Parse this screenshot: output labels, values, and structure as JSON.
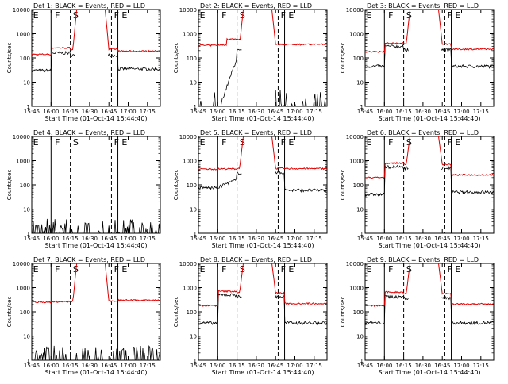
{
  "figure": {
    "xlabel": "Start Time (01-Oct-14 15:44:40)",
    "ylabel": "Counts/sec",
    "x_tick_labels": [
      "15:45",
      "16:00",
      "16:15",
      "16:30",
      "16:45",
      "17:00",
      "17:15"
    ],
    "y_tick_labels": [
      "1",
      "10",
      "100",
      "1000",
      "10000"
    ],
    "colors": {
      "events": "#000000",
      "lld": "#e00000"
    }
  },
  "chart_data": [
    {
      "type": "line",
      "title": "Det 1: BLACK = Events, RED = LLD",
      "ylim": [
        1,
        10000
      ],
      "yscale": "log",
      "markers": [
        "E",
        "F",
        "S",
        "F",
        "E"
      ],
      "events_level": [
        30,
        160,
        130,
        35
      ],
      "lld_level": [
        140,
        260,
        230,
        190
      ]
    },
    {
      "type": "line",
      "title": "Det 2: BLACK = Events, RED = LLD",
      "ylim": [
        1,
        10000
      ],
      "yscale": "log",
      "markers": [
        "E",
        "F",
        "S",
        "F",
        "E"
      ],
      "events_level": [
        1.5,
        20,
        120,
        1.5
      ],
      "lld_level": [
        330,
        350,
        360,
        360
      ]
    },
    {
      "type": "line",
      "title": "Det 3: BLACK = Events, RED = LLD",
      "ylim": [
        1,
        10000
      ],
      "yscale": "log",
      "markers": [
        "E",
        "F",
        "S",
        "F",
        "E"
      ],
      "events_level": [
        45,
        300,
        220,
        45
      ],
      "lld_level": [
        180,
        400,
        380,
        230
      ]
    },
    {
      "type": "line",
      "title": "Det 4: BLACK = Events, RED = LLD",
      "ylim": [
        1,
        10000
      ],
      "yscale": "log",
      "markers": [
        "E",
        "F",
        "S",
        "F",
        "E"
      ],
      "events_level": [
        1.5,
        1.5,
        1.5,
        1.5
      ],
      "lld_level": [
        null,
        null,
        null,
        null
      ]
    },
    {
      "type": "line",
      "title": "Det 5: BLACK = Events, RED = LLD",
      "ylim": [
        1,
        10000
      ],
      "yscale": "log",
      "markers": [
        "E",
        "F",
        "S",
        "F",
        "E"
      ],
      "events_level": [
        75,
        160,
        320,
        60
      ],
      "lld_level": [
        450,
        460,
        480,
        470
      ]
    },
    {
      "type": "line",
      "title": "Det 6: BLACK = Events, RED = LLD",
      "ylim": [
        1,
        10000
      ],
      "yscale": "log",
      "markers": [
        "E",
        "F",
        "S",
        "F",
        "E"
      ],
      "events_level": [
        40,
        550,
        500,
        50
      ],
      "lld_level": [
        200,
        800,
        700,
        260
      ]
    },
    {
      "type": "line",
      "title": "Det 7: BLACK = Events, RED = LLD",
      "ylim": [
        1,
        10000
      ],
      "yscale": "log",
      "markers": [
        "E",
        "F",
        "S",
        "F",
        "E"
      ],
      "events_level": [
        1.5,
        1.5,
        1.5,
        1.5
      ],
      "lld_level": [
        250,
        260,
        270,
        300
      ]
    },
    {
      "type": "line",
      "title": "Det 8: BLACK = Events, RED = LLD",
      "ylim": [
        1,
        10000
      ],
      "yscale": "log",
      "markers": [
        "E",
        "F",
        "S",
        "F",
        "E"
      ],
      "events_level": [
        35,
        500,
        420,
        35
      ],
      "lld_level": [
        180,
        700,
        600,
        220
      ]
    },
    {
      "type": "line",
      "title": "Det 9: BLACK = Events, RED = LLD",
      "ylim": [
        1,
        10000
      ],
      "yscale": "log",
      "markers": [
        "E",
        "F",
        "S",
        "F",
        "E"
      ],
      "events_level": [
        35,
        420,
        380,
        35
      ],
      "lld_level": [
        180,
        650,
        560,
        210
      ]
    }
  ]
}
